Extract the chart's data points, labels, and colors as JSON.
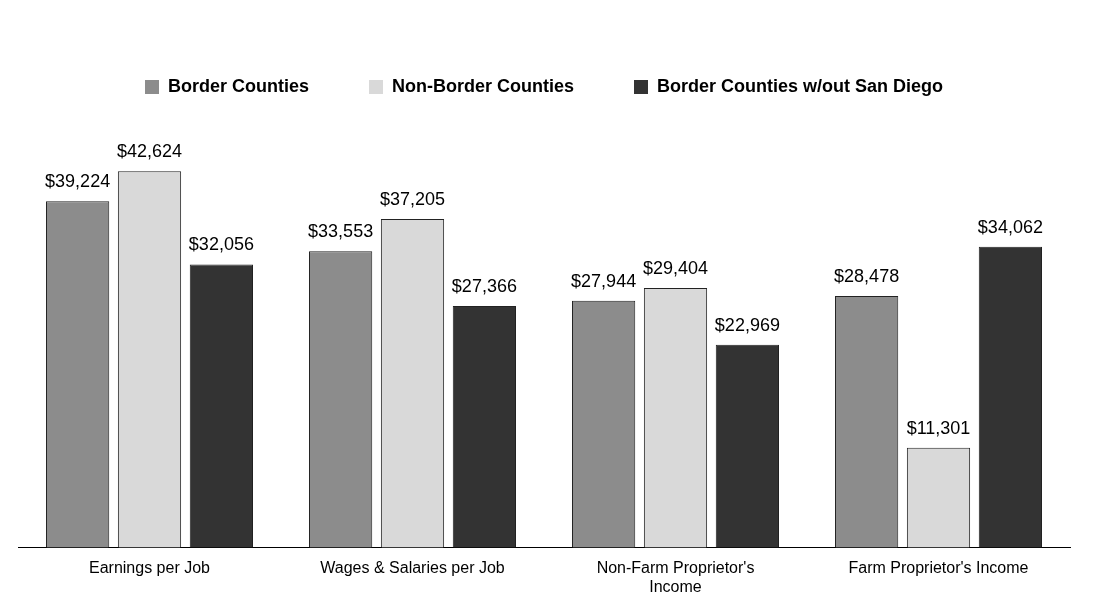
{
  "chart_data": {
    "type": "bar",
    "categories": [
      "Earnings per Job",
      "Wages & Salaries per Job",
      "Non-Farm Proprietor's Income",
      "Farm Proprietor's Income"
    ],
    "series": [
      {
        "name": "Border Counties",
        "color": "#8c8c8c",
        "values": [
          39224,
          33553,
          27944,
          28478
        ],
        "value_labels": [
          "$39,224",
          "$33,553",
          "$27,944",
          "$28,478"
        ]
      },
      {
        "name": "Non-Border Counties",
        "color": "#d9d9d9",
        "values": [
          42624,
          37205,
          29404,
          11301
        ],
        "value_labels": [
          "$42,624",
          "$37,205",
          "$29,404",
          "$11,301"
        ]
      },
      {
        "name": "Border Counties w/out San Diego",
        "color": "#333333",
        "values": [
          32056,
          27366,
          22969,
          34062
        ],
        "value_labels": [
          "$32,056",
          "$27,366",
          "$22,969",
          "$34,062"
        ]
      }
    ],
    "legend": "top",
    "grid": false
  }
}
